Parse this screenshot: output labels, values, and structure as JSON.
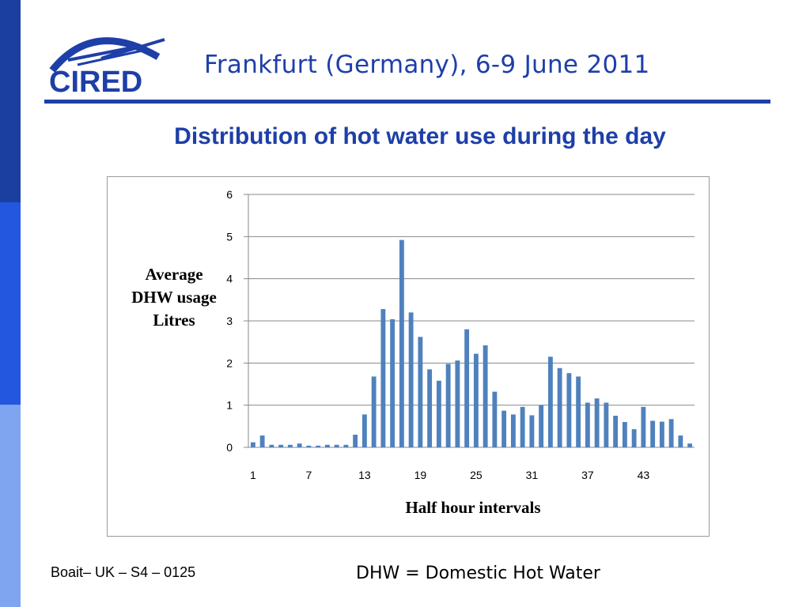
{
  "header": {
    "logo_text": "CIRED",
    "conference": "Frankfurt (Germany), 6-9 June 2011"
  },
  "slide": {
    "title": "Distribution of hot water use during the day"
  },
  "footer": {
    "left": "Boait– UK – S4 – 0125",
    "right": "DHW = Domestic Hot Water"
  },
  "colors": {
    "brand_blue": "#1e3fa8",
    "bar": "#4f81bd",
    "grid": "#888888"
  },
  "chart_data": {
    "type": "bar",
    "xlabel": "Half hour intervals",
    "ylabel_lines": [
      "Average",
      "DHW usage",
      "Litres"
    ],
    "ylim": [
      0,
      6
    ],
    "yticks": [
      "0",
      "1",
      "2",
      "3",
      "4",
      "5",
      "6"
    ],
    "x_tick_labels": [
      {
        "index": 1,
        "label": "1"
      },
      {
        "index": 7,
        "label": "7"
      },
      {
        "index": 13,
        "label": "13"
      },
      {
        "index": 19,
        "label": "19"
      },
      {
        "index": 25,
        "label": "25"
      },
      {
        "index": 31,
        "label": "31"
      },
      {
        "index": 37,
        "label": "37"
      },
      {
        "index": 43,
        "label": "43"
      }
    ],
    "grid": true,
    "legend": "none",
    "x": [
      1,
      2,
      3,
      4,
      5,
      6,
      7,
      8,
      9,
      10,
      11,
      12,
      13,
      14,
      15,
      16,
      17,
      18,
      19,
      20,
      21,
      22,
      23,
      24,
      25,
      26,
      27,
      28,
      29,
      30,
      31,
      32,
      33,
      34,
      35,
      36,
      37,
      38,
      39,
      40,
      41,
      42,
      43,
      44,
      45,
      46,
      47,
      48
    ],
    "values": [
      0.12,
      0.28,
      0.06,
      0.06,
      0.06,
      0.09,
      0.04,
      0.04,
      0.06,
      0.06,
      0.06,
      0.3,
      0.78,
      1.68,
      3.28,
      3.04,
      4.92,
      3.2,
      2.62,
      1.85,
      1.58,
      1.98,
      2.06,
      2.8,
      2.22,
      2.42,
      1.32,
      0.87,
      0.78,
      0.96,
      0.76,
      1.0,
      2.15,
      1.88,
      1.76,
      1.68,
      1.06,
      1.16,
      1.06,
      0.75,
      0.6,
      0.43,
      0.96,
      0.63,
      0.61,
      0.67,
      0.28,
      0.09
    ]
  }
}
